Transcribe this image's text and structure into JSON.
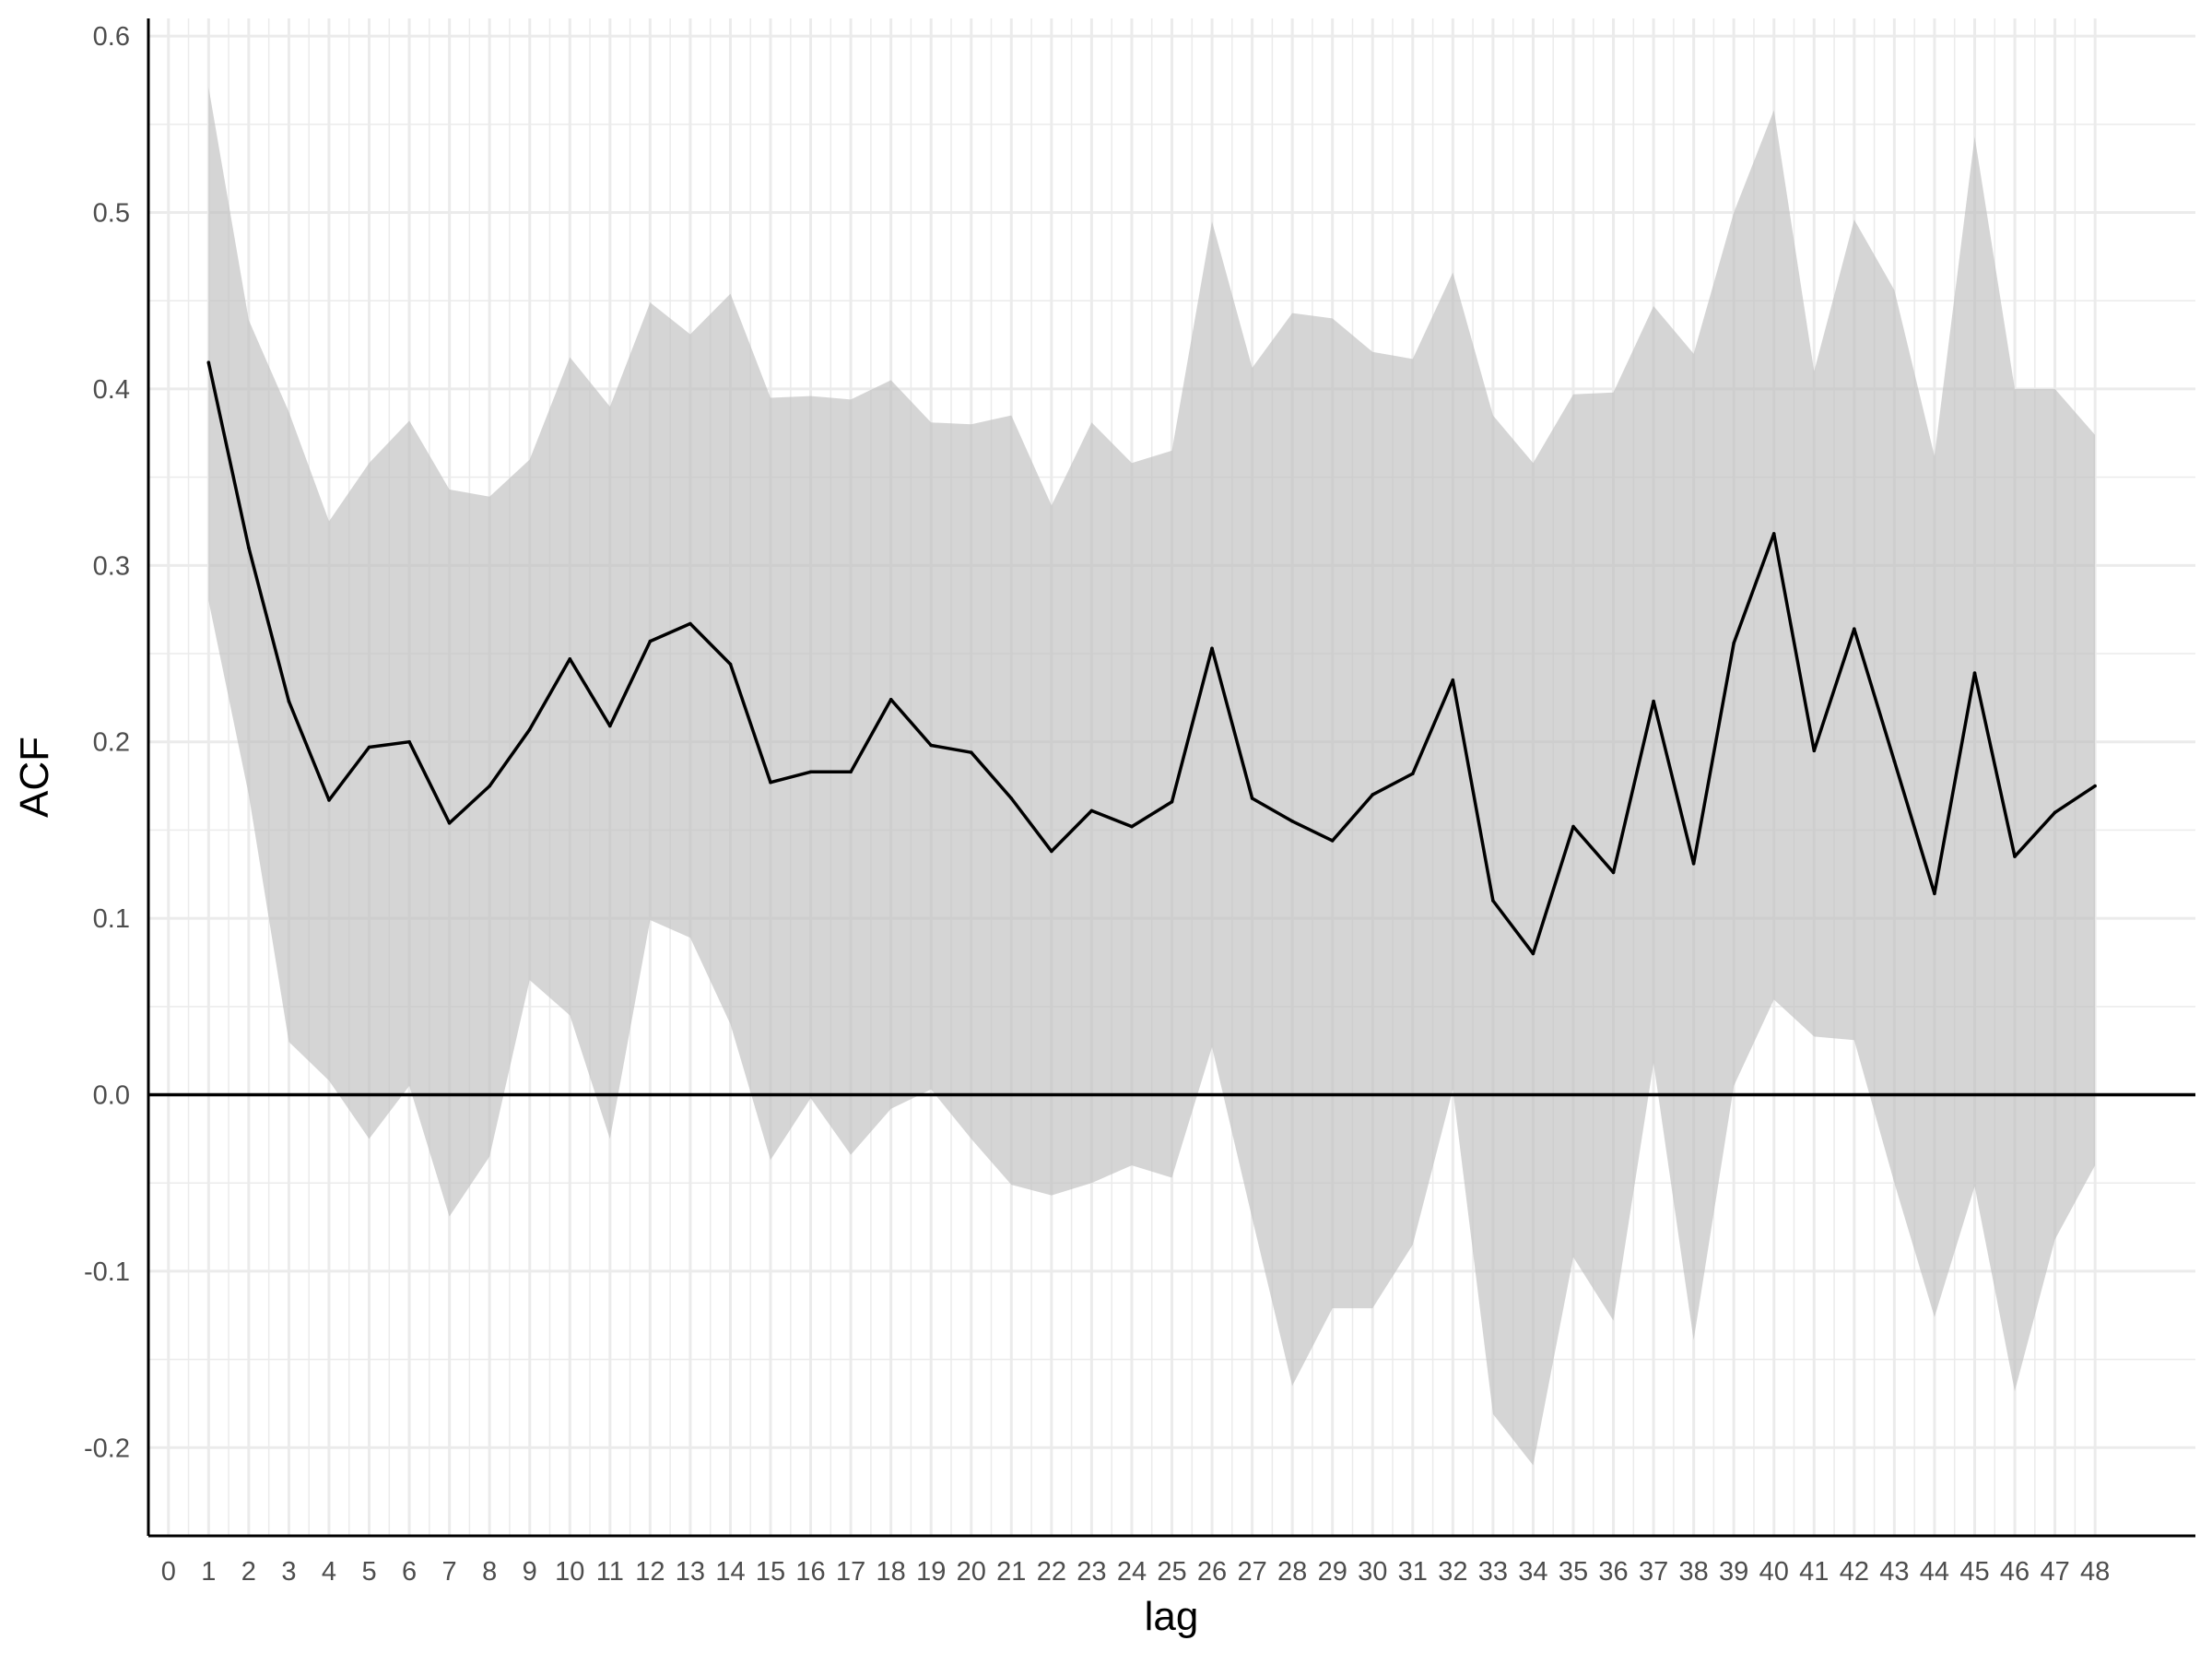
{
  "chart_data": {
    "type": "line",
    "title": "",
    "xlabel": "lag",
    "ylabel": "ACF",
    "xlim": [
      -0.5,
      50.5
    ],
    "ylim": [
      -0.25,
      0.61
    ],
    "x_ticks": [
      0,
      1,
      2,
      3,
      4,
      5,
      6,
      7,
      8,
      9,
      10,
      11,
      12,
      13,
      14,
      15,
      16,
      17,
      18,
      19,
      20,
      21,
      22,
      23,
      24,
      25,
      26,
      27,
      28,
      29,
      30,
      31,
      32,
      33,
      34,
      35,
      36,
      37,
      38,
      39,
      40,
      41,
      42,
      43,
      44,
      45,
      46,
      47,
      48
    ],
    "y_ticks": [
      -0.2,
      -0.1,
      0.0,
      0.1,
      0.2,
      0.3,
      0.4,
      0.5,
      0.6
    ],
    "y_tick_labels": [
      "-0.2",
      "-0.1",
      "0.0",
      "0.1",
      "0.2",
      "0.3",
      "0.4",
      "0.5",
      "0.6"
    ],
    "grid": true,
    "reference_line": 0,
    "x": [
      1,
      2,
      3,
      4,
      5,
      6,
      7,
      8,
      9,
      10,
      11,
      12,
      13,
      14,
      15,
      16,
      17,
      18,
      19,
      20,
      21,
      22,
      23,
      24,
      25,
      26,
      27,
      28,
      29,
      30,
      31,
      32,
      33,
      34,
      35,
      36,
      37,
      38,
      39,
      40,
      41,
      42,
      43,
      44,
      45,
      46,
      47,
      48
    ],
    "series": [
      {
        "values": [
          0.415,
          0.31,
          0.223,
          0.167,
          0.197,
          0.2,
          0.154,
          0.175,
          0.207,
          0.247,
          0.209,
          0.257,
          0.267,
          0.244,
          0.177,
          0.183,
          0.183,
          0.224,
          0.198,
          0.194,
          0.168,
          0.138,
          0.161,
          0.152,
          0.166,
          0.253,
          0.168,
          0.155,
          0.144,
          0.17,
          0.182,
          0.235,
          0.11,
          0.08,
          0.152,
          0.126,
          0.223,
          0.131,
          0.256,
          0.318,
          0.195,
          0.264,
          0.189,
          0.114,
          0.239,
          0.135,
          0.16,
          0.175
        ],
        "upper": [
          0.571,
          0.439,
          0.387,
          0.325,
          0.358,
          0.382,
          0.343,
          0.339,
          0.36,
          0.418,
          0.39,
          0.449,
          0.431,
          0.454,
          0.395,
          0.396,
          0.394,
          0.405,
          0.381,
          0.38,
          0.385,
          0.334,
          0.381,
          0.358,
          0.365,
          0.495,
          0.412,
          0.443,
          0.44,
          0.421,
          0.417,
          0.466,
          0.385,
          0.358,
          0.397,
          0.398,
          0.447,
          0.42,
          0.5,
          0.558,
          0.41,
          0.496,
          0.456,
          0.362,
          0.543,
          0.4,
          0.4,
          0.374
        ],
        "lower": [
          0.28,
          0.17,
          0.03,
          0.008,
          -0.025,
          0.005,
          -0.069,
          -0.035,
          0.065,
          0.045,
          -0.025,
          0.099,
          0.089,
          0.04,
          -0.037,
          -0.002,
          -0.034,
          -0.008,
          0.003,
          -0.025,
          -0.051,
          -0.057,
          -0.05,
          -0.04,
          -0.047,
          0.027,
          -0.07,
          -0.165,
          -0.121,
          -0.121,
          -0.085,
          0.003,
          -0.181,
          -0.21,
          -0.092,
          -0.128,
          0.018,
          -0.139,
          0.005,
          0.054,
          0.033,
          0.031,
          -0.05,
          -0.126,
          -0.052,
          -0.168,
          -0.082,
          -0.04
        ]
      }
    ],
    "colors": {
      "line": "#000000",
      "ribbon": "#bebebe",
      "grid": "#ebebeb",
      "axis": "#000000",
      "tick_text": "#4d4d4d",
      "title_text": "#000000"
    }
  }
}
